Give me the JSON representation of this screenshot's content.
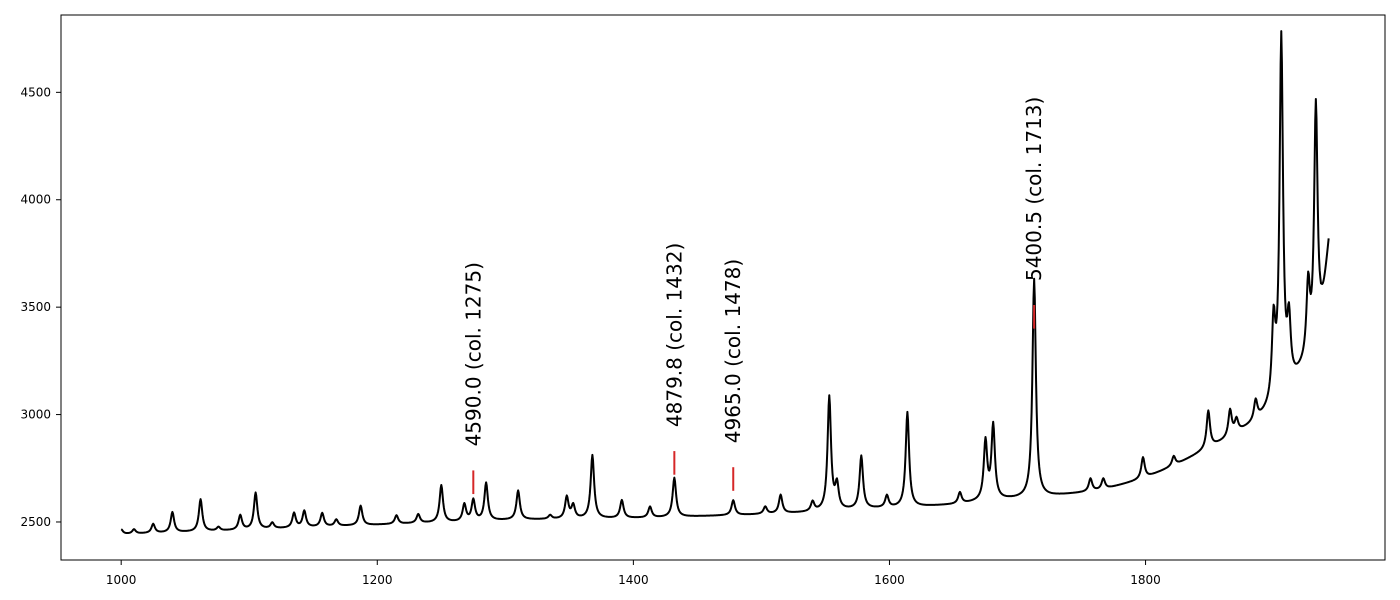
{
  "chart_data": {
    "type": "line",
    "title": "",
    "xlabel": "",
    "ylabel": "",
    "xlim": [
      953,
      1987
    ],
    "ylim": [
      2323,
      4860
    ],
    "x_ticks": [
      1000,
      1200,
      1400,
      1600,
      1800
    ],
    "y_ticks": [
      2500,
      3000,
      3500,
      4000,
      4500
    ],
    "x_tick_labels": [
      "1000",
      "1200",
      "1400",
      "1600",
      "1800"
    ],
    "y_tick_labels": [
      "2500",
      "3000",
      "3500",
      "4000",
      "4500"
    ],
    "grid": false,
    "colors": {
      "line": "#000000",
      "marker": "#d62728"
    },
    "series": [
      {
        "x": [
          1000,
          1010,
          1025,
          1040,
          1062,
          1076,
          1093,
          1105,
          1118,
          1135,
          1143,
          1157,
          1168,
          1187,
          1215,
          1232,
          1250,
          1268,
          1275,
          1285,
          1310,
          1335,
          1348,
          1353,
          1368,
          1391,
          1413,
          1432,
          1478,
          1503,
          1515,
          1540,
          1553,
          1559,
          1578,
          1598,
          1614,
          1655,
          1675,
          1681,
          1713,
          1757,
          1767,
          1798,
          1822,
          1849,
          1866,
          1871,
          1886,
          1900,
          1906,
          1912,
          1927,
          1933,
          1937,
          1943
        ],
        "base": [
          2443,
          2445,
          2448,
          2451,
          2455,
          2458,
          2462,
          2465,
          2468,
          2472,
          2474,
          2477,
          2480,
          2484,
          2490,
          2494,
          2497,
          2500,
          2503,
          2505,
          2510,
          2512,
          2513,
          2514,
          2515,
          2517,
          2519,
          2523,
          2531,
          2536,
          2539,
          2545,
          2550,
          2552,
          2559,
          2564,
          2567,
          2582,
          2598,
          2601,
          2611,
          2640,
          2650,
          2700,
          2760,
          2840,
          2890,
          2910,
          2960,
          3030,
          3070,
          3110,
          3240,
          3300,
          3380,
          3780
        ],
        "peak": [
          2465,
          2465,
          2490,
          2545,
          2605,
          2475,
          2530,
          2635,
          2495,
          2540,
          2550,
          2540,
          2510,
          2575,
          2530,
          2535,
          2670,
          2580,
          2600,
          2680,
          2645,
          2530,
          2615,
          2575,
          2810,
          2600,
          2570,
          2705,
          2600,
          2570,
          2625,
          2590,
          3080,
          2665,
          2805,
          2620,
          3010,
          2635,
          2870,
          2945,
          3630,
          2700,
          2700,
          2800,
          2805,
          3015,
          3015,
          2970,
          3055,
          3390,
          4735,
          3395,
          3575,
          4430,
          3440,
          3780
        ]
      }
    ],
    "annotations": [
      {
        "label": "4590.0 (col. 1275)",
        "x": 1275,
        "y_mark": [
          2630,
          2740
        ]
      },
      {
        "label": "4879.8 (col. 1432)",
        "x": 1432,
        "y_mark": [
          2720,
          2830
        ]
      },
      {
        "label": "4965.0 (col. 1478)",
        "x": 1478,
        "y_mark": [
          2645,
          2755
        ]
      },
      {
        "label": "5400.5 (col. 1713)",
        "x": 1713,
        "y_mark": [
          3400,
          3510
        ]
      }
    ]
  }
}
